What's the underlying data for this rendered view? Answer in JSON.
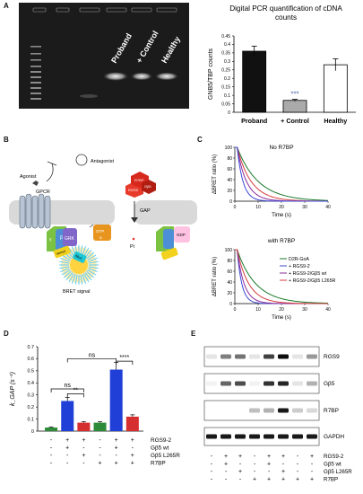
{
  "panels": {
    "A": "A",
    "B": "B",
    "C": "C",
    "D": "D",
    "E": "E"
  },
  "gel": {
    "lanes": [
      "Proband",
      "+ Control",
      "Healthy"
    ]
  },
  "chart_data": [
    {
      "type": "bar",
      "title": "Digital PCR quantification of cDNA counts",
      "ylabel": "GNB5/TBP counts",
      "categories": [
        "Proband",
        "+ Control",
        "Healthy"
      ],
      "values": [
        0.36,
        0.07,
        0.28
      ],
      "errors": [
        0.03,
        0.006,
        0.035
      ],
      "colors": [
        "#111111",
        "#aaaaaa",
        "#ffffff"
      ],
      "ylim": [
        0,
        0.45
      ],
      "yticks": [
        "0",
        "0.05",
        "0.1",
        "0.15",
        "0.2",
        "0.25",
        "0.3",
        "0.35",
        "0.4",
        "0.45"
      ],
      "annotation": "***"
    },
    {
      "type": "line",
      "title": "No R7BP",
      "xlabel": "Time (s)",
      "ylabel": "ΔBRET ratio (%)",
      "xlim": [
        0,
        40
      ],
      "ylim": [
        0,
        100
      ],
      "xticks": [
        "0",
        "10",
        "20",
        "30",
        "40"
      ],
      "yticks": [
        "0",
        "20",
        "40",
        "60",
        "80",
        "100"
      ],
      "series": [
        {
          "color": "#1a7a2a",
          "tau": 9.0
        },
        {
          "color": "#d43c3c",
          "tau": 6.0
        },
        {
          "color": "#8a2a9a",
          "tau": 4.0
        },
        {
          "color": "#3b48d6",
          "tau": 2.5
        }
      ]
    },
    {
      "type": "line",
      "title": "with R7BP",
      "xlabel": "Time (s)",
      "ylabel": "ΔBRET ratio (%)",
      "xlim": [
        0,
        40
      ],
      "ylim": [
        0,
        100
      ],
      "xticks": [
        "0",
        "10",
        "20",
        "30",
        "40"
      ],
      "yticks": [
        "0",
        "20",
        "40",
        "60",
        "80",
        "100"
      ],
      "series": [
        {
          "name": "D2R-GoA",
          "color": "#1a7a2a",
          "tau": 8.0
        },
        {
          "name": "+ RGS9-2",
          "color": "#3b48d6",
          "tau": 2.0
        },
        {
          "name": "+ RGS9-2/Gβ5 wt",
          "color": "#8a2a9a",
          "tau": 3.0
        },
        {
          "name": "+ RGS9-2/Gβ5 L265R",
          "color": "#d43c3c",
          "tau": 5.0
        }
      ]
    },
    {
      "type": "bar",
      "ylabel": "k_GAP (s⁻¹)",
      "values": [
        0.03,
        0.25,
        0.07,
        0.07,
        0.51,
        0.12
      ],
      "errors": [
        0.005,
        0.03,
        0.008,
        0.008,
        0.06,
        0.015
      ],
      "colors": [
        "#2e8b3a",
        "#1f3fd6",
        "#d62f2f",
        "#2e8b3a",
        "#1f3fd6",
        "#d62f2f"
      ],
      "ylim": [
        0,
        0.7
      ],
      "yticks": [
        "0",
        "0.1",
        "0.2",
        "0.3",
        "0.4",
        "0.5",
        "0.6",
        "0.7"
      ],
      "significance": [
        {
          "label": "ns",
          "from": 1,
          "to": 3
        },
        {
          "label": "**",
          "from": 2,
          "to": 3
        },
        {
          "label": "ns",
          "from": 2,
          "to": 5
        },
        {
          "label": "****",
          "from": 5,
          "to": 6
        }
      ],
      "conditions": [
        {
          "name": "RGS9-2",
          "marks": [
            "-",
            "+",
            "+",
            "-",
            "+",
            "+"
          ]
        },
        {
          "name": "Gβ5 wt",
          "marks": [
            "-",
            "+",
            "-",
            "-",
            "+",
            "-"
          ]
        },
        {
          "name": "Gβ5 L265R",
          "marks": [
            "-",
            "-",
            "+",
            "-",
            "-",
            "+"
          ]
        },
        {
          "name": "R7BP",
          "marks": [
            "-",
            "-",
            "-",
            "+",
            "+",
            "+"
          ]
        }
      ]
    }
  ],
  "diagram": {
    "antagonist": "Antagonist",
    "agonist": "Agonist",
    "gpcr": "GPCR",
    "bret": "BRET signal",
    "gap": "GAP",
    "pi": "Pi",
    "grk": "GRK",
    "r7bp": "R7BP",
    "gb5": "Gβ5",
    "rgs9": "RGS9",
    "g_gamma": "γ",
    "g_beta": "β",
    "g_alpha": "α",
    "gtp": "GTP",
    "gdp": "GDP",
    "venus": "Venus",
    "nluc": "Nluc"
  },
  "blot": {
    "bands": [
      "RGS9",
      "Gβ5",
      "R7BP",
      "GAPDH"
    ],
    "conditions": [
      {
        "name": "RGS9-2",
        "marks": [
          "-",
          "+",
          "+",
          "-",
          "+",
          "+",
          "-",
          "+"
        ]
      },
      {
        "name": "Gβ5 wt",
        "marks": [
          "-",
          "+",
          "-",
          "-",
          "+",
          "-",
          "-",
          "-"
        ]
      },
      {
        "name": "Gβ5 L265R",
        "marks": [
          "-",
          "-",
          "+",
          "-",
          "-",
          "+",
          "-",
          "-"
        ]
      },
      {
        "name": "R7BP",
        "marks": [
          "-",
          "-",
          "-",
          "+",
          "+",
          "+",
          "+",
          "+"
        ]
      }
    ]
  }
}
